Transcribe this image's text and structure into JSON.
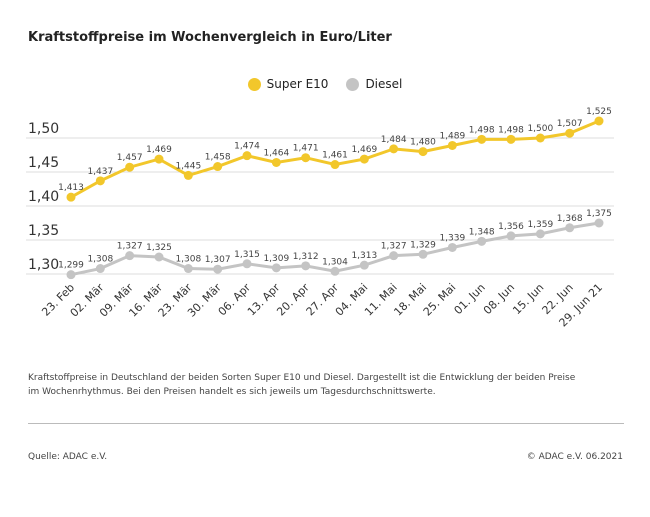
{
  "chart_data": {
    "type": "line",
    "title": "Kraftstoffpreise im Wochenvergleich in Euro/Liter",
    "categories": [
      "23. Feb",
      "02. Mär",
      "09. Mär",
      "16. Mär",
      "23. Mär",
      "30. Mär",
      "06. Apr",
      "13. Apr",
      "20. Apr",
      "27. Apr",
      "04. Mai",
      "11. Mai",
      "18. Mai",
      "25. Mai",
      "01. Jun",
      "08. Jun",
      "15. Jun",
      "22. Jun",
      "29. Jun 21"
    ],
    "series": [
      {
        "name": "Super E10",
        "color": "#f2c72b",
        "values": [
          1.413,
          1.437,
          1.457,
          1.469,
          1.445,
          1.458,
          1.474,
          1.464,
          1.471,
          1.461,
          1.469,
          1.484,
          1.48,
          1.489,
          1.498,
          1.498,
          1.5,
          1.507,
          1.525
        ]
      },
      {
        "name": "Diesel",
        "color": "#c4c4c4",
        "values": [
          1.299,
          1.308,
          1.327,
          1.325,
          1.308,
          1.307,
          1.315,
          1.309,
          1.312,
          1.304,
          1.313,
          1.327,
          1.329,
          1.339,
          1.348,
          1.356,
          1.359,
          1.368,
          1.375
        ]
      }
    ],
    "yticks": [
      "1,30",
      "1,35",
      "1,40",
      "1,45",
      "1,50"
    ],
    "ylim": [
      1.3,
      1.5
    ],
    "grid": true,
    "legend": "top-center"
  },
  "note": "Kraftstoffpreise in Deutschland der beiden Sorten Super E10 und Diesel. Dargestellt ist die Entwicklung der beiden Preise im Wochenrhythmus. Bei den Preisen handelt es sich jeweils um Tagesdurchschnittswerte.",
  "source": "Quelle: ADAC e.V.",
  "copyright": "© ADAC e.V. 06.2021"
}
